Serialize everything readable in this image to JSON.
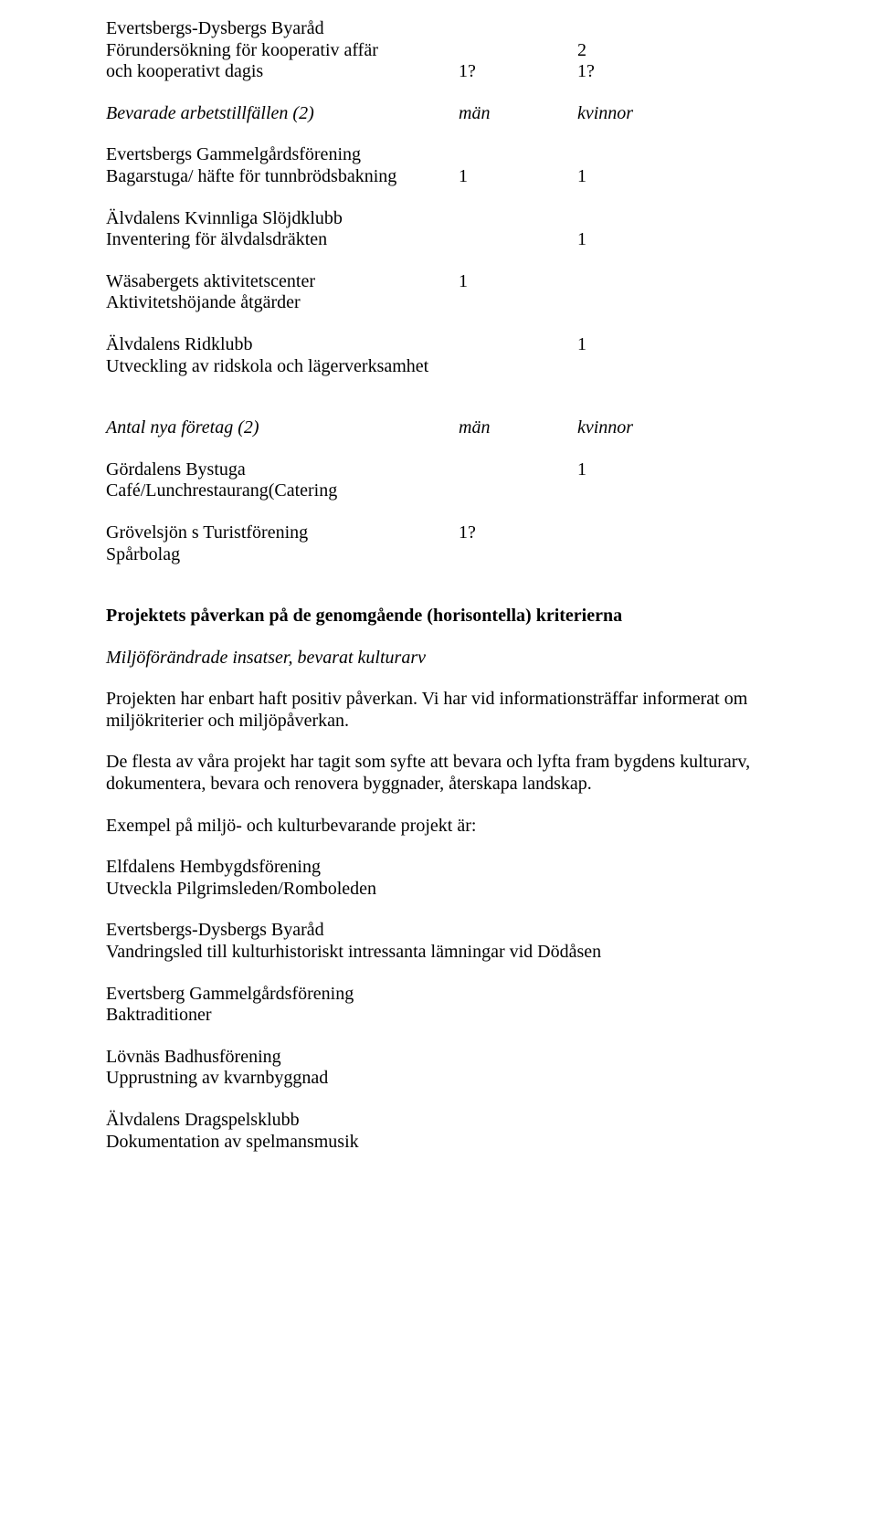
{
  "col_headers": {
    "men": "män",
    "women": "kvinnor"
  },
  "evertsbergs_byarad": {
    "name": "Evertsbergs-Dysbergs Byaråd",
    "line1": "Förundersökning för kooperativ affär",
    "line1_k": "2",
    "line2": "och kooperativt dagis",
    "line2_m": "1?",
    "line2_k": "1?"
  },
  "bevarade": {
    "title": "Bevarade arbetstillfällen (2)"
  },
  "gammelgard": {
    "name": "Evertsbergs Gammelgårdsförening",
    "line1": "Bagarstuga/ häfte för tunnbrödsbakning",
    "line1_m": "1",
    "line1_k": "1"
  },
  "slojd": {
    "name": "Älvdalens Kvinnliga Slöjdklubb",
    "line1": "Inventering för älvdalsdräkten",
    "line1_k": "1"
  },
  "wasa": {
    "name": "Wäsabergets aktivitetscenter",
    "name_m": "1",
    "line1": "Aktivitetshöjande åtgärder"
  },
  "ridklubb": {
    "name": "Älvdalens Ridklubb",
    "name_k": "1",
    "line1": "Utveckling av ridskola och lägerverksamhet"
  },
  "antal_nya": {
    "title": "Antal nya företag (2)"
  },
  "gordalens": {
    "name": "Gördalens Bystuga",
    "name_k": "1",
    "line1": "Café/Lunchrestaurang(Catering"
  },
  "grovelsjon": {
    "name": "Grövelsjön s Turistförening",
    "name_m": "1?",
    "line1": "Spårbolag"
  },
  "horiz_heading": "Projektets påverkan på de genomgående (horisontella) kriterierna",
  "miljo_sub": "Miljöförändrade insatser, bevarat kulturarv",
  "para1": "Projekten har enbart haft positiv påverkan. Vi har vid informationsträffar informerat om miljökriterier och miljöpåverkan.",
  "para2": "De flesta av våra projekt har tagit som syfte att bevara och lyfta fram bygdens kulturarv, dokumentera, bevara och renovera byggnader, återskapa landskap.",
  "exempel": "Exempel på miljö- och kulturbevarande projekt är:",
  "list1": {
    "a": "Elfdalens Hembygdsförening",
    "b": "Utveckla Pilgrimsleden/Romboleden"
  },
  "list2": {
    "a": "Evertsbergs-Dysbergs Byaråd",
    "b": "Vandringsled till kulturhistoriskt intressanta lämningar vid Dödåsen"
  },
  "list3": {
    "a": "Evertsberg Gammelgårdsförening",
    "b": "Baktraditioner"
  },
  "list4": {
    "a": "Lövnäs Badhusförening",
    "b": "Upprustning av kvarnbyggnad"
  },
  "list5": {
    "a": "Älvdalens Dragspelsklubb",
    "b": "Dokumentation av spelmansmusik"
  }
}
